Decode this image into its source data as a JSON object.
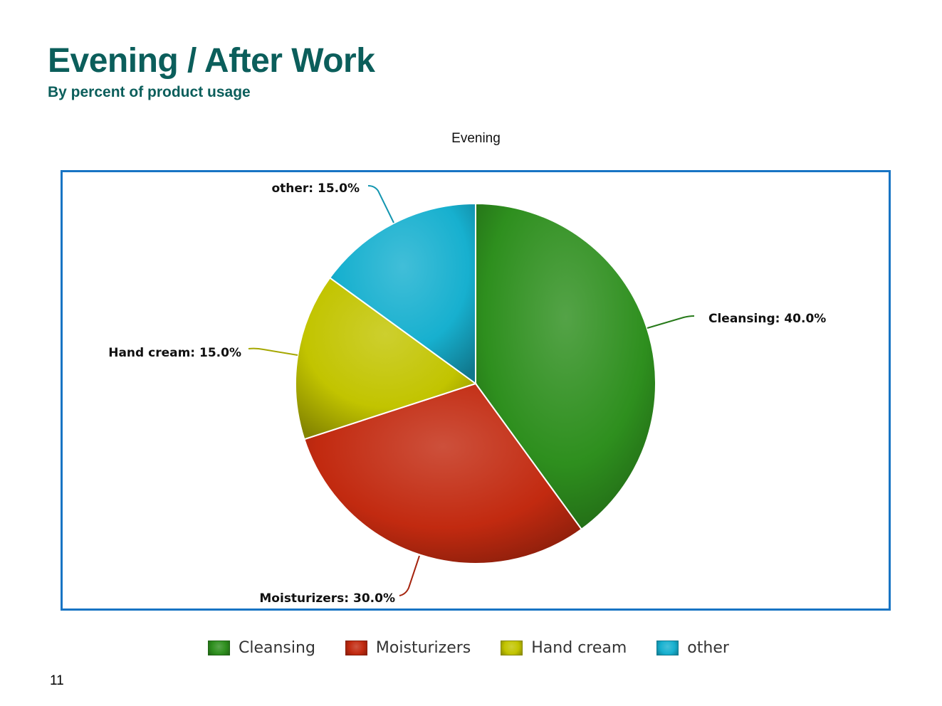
{
  "slide": {
    "title": "Evening / After Work",
    "subtitle": "By percent of product usage",
    "page_number": "11"
  },
  "chart_data": {
    "type": "pie",
    "title": "Evening",
    "categories": [
      "Cleansing",
      "Moisturizers",
      "Hand cream",
      "other"
    ],
    "values": [
      40.0,
      30.0,
      15.0,
      15.0
    ],
    "slice_labels": [
      "Cleansing: 40.0%",
      "Moisturizers: 30.0%",
      "Hand cream: 15.0%",
      "other: 15.0%"
    ],
    "colors": [
      "#2e8f1e",
      "#c22a10",
      "#c2c400",
      "#17b0cf"
    ],
    "start_angle": "12 o'clock",
    "direction": "clockwise",
    "legend": "bottom"
  },
  "legend": {
    "items": [
      {
        "label": "Cleansing"
      },
      {
        "label": "Moisturizers"
      },
      {
        "label": "Hand cream"
      },
      {
        "label": "other"
      }
    ]
  }
}
